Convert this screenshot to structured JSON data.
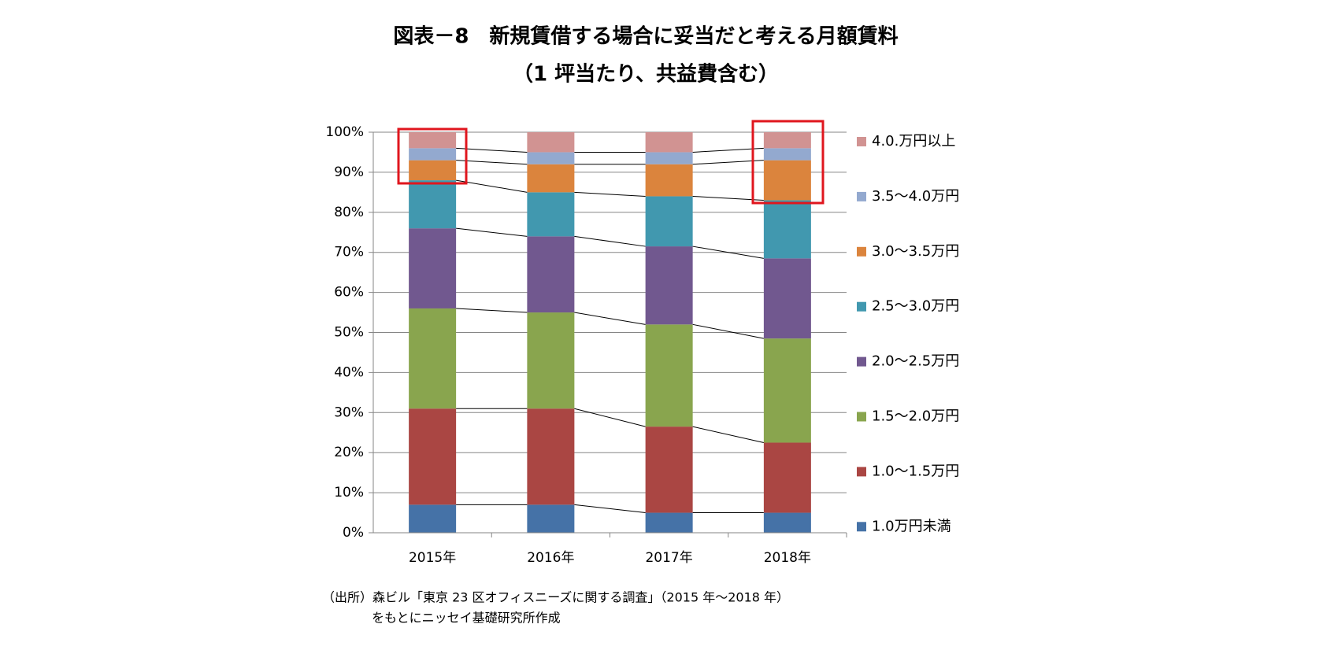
{
  "chart_data": {
    "type": "stacked_bar",
    "title": "図表－8　新規賃借する場合に妥当だと考える月額賃料",
    "subtitle": "（1 坪当たり、共益費含む）",
    "categories": [
      "2015年",
      "2016年",
      "2017年",
      "2018年"
    ],
    "series": [
      {
        "name": "1.0万円未満",
        "color": "#4572a7",
        "values": [
          7,
          7,
          5,
          5
        ]
      },
      {
        "name": "1.0～1.5万円",
        "color": "#aa4643",
        "values": [
          24,
          24,
          21.5,
          17.5
        ]
      },
      {
        "name": "1.5～2.0万円",
        "color": "#89a54e",
        "values": [
          25,
          24,
          25.5,
          26
        ]
      },
      {
        "name": "2.0～2.5万円",
        "color": "#71588f",
        "values": [
          20,
          19,
          19.5,
          20
        ]
      },
      {
        "name": "2.5～3.0万円",
        "color": "#4198af",
        "values": [
          12,
          11,
          12.5,
          14.5
        ]
      },
      {
        "name": "3.0～3.5万円",
        "color": "#db843d",
        "values": [
          5,
          7,
          8,
          10
        ]
      },
      {
        "name": "3.5～4.0万円",
        "color": "#93a9cf",
        "values": [
          3,
          3,
          3,
          3
        ]
      },
      {
        "name": "4.0.万円以上",
        "color": "#d19392",
        "values": [
          4,
          5,
          5,
          4
        ]
      }
    ],
    "ylim": [
      0,
      100
    ],
    "yticks": [
      {
        "value": 0,
        "label": "0%"
      },
      {
        "value": 10,
        "label": "10%"
      },
      {
        "value": 20,
        "label": "20%"
      },
      {
        "value": 30,
        "label": "30%"
      },
      {
        "value": 40,
        "label": "40%"
      },
      {
        "value": 50,
        "label": "50%"
      },
      {
        "value": 60,
        "label": "60%"
      },
      {
        "value": 70,
        "label": "70%"
      },
      {
        "value": 80,
        "label": "80%"
      },
      {
        "value": 90,
        "label": "90%"
      },
      {
        "value": 100,
        "label": "100%"
      }
    ],
    "grid": true,
    "legend": "right",
    "source": [
      "（出所）森ビル「東京 23 区オフィスニーズに関する調査」（2015 年～2018 年）",
      "をもとにニッセイ基礎研究所作成"
    ]
  }
}
